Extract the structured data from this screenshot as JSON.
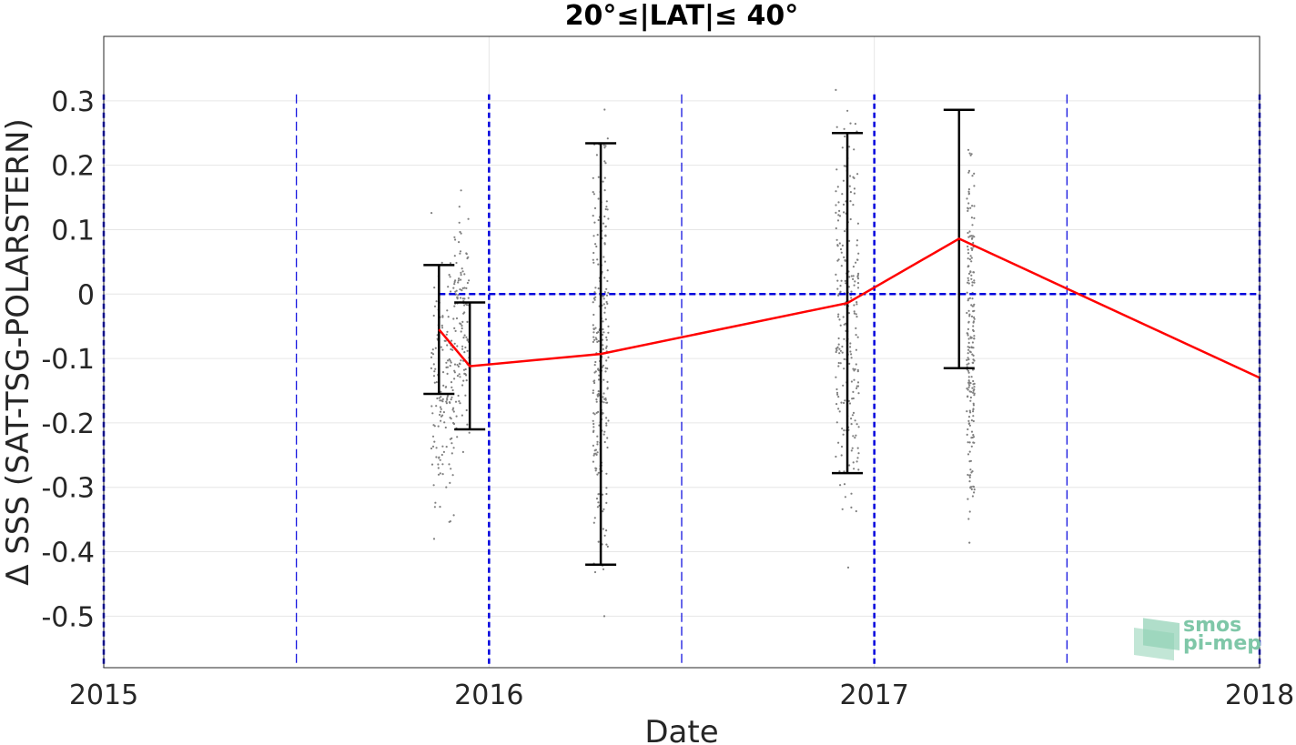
{
  "chart_data": {
    "type": "line",
    "title": "20°≤|LAT|≤ 40°",
    "xlabel": "Date",
    "ylabel": "Δ SSS (SAT-TSG-POLARSTERN)",
    "xlim": [
      2015,
      2018
    ],
    "ylim": [
      -0.58,
      0.4
    ],
    "x_ticks": [
      "2015",
      "2016",
      "2017",
      "2018"
    ],
    "y_ticks": [
      "0.3",
      "0.2",
      "0.1",
      "0",
      "-0.1",
      "-0.2",
      "-0.3",
      "-0.4",
      "-0.5"
    ],
    "grid": true,
    "mean_series": {
      "color": "#ff0000",
      "x": [
        2015.87,
        2015.95,
        2016.29,
        2016.93,
        2017.22,
        2018.0
      ],
      "y": [
        -0.055,
        -0.112,
        -0.093,
        -0.014,
        0.086,
        -0.13
      ]
    },
    "error_bars": [
      {
        "x": 2015.87,
        "low": -0.155,
        "high": 0.045
      },
      {
        "x": 2015.95,
        "low": -0.21,
        "high": -0.013
      },
      {
        "x": 2016.29,
        "low": -0.42,
        "high": 0.234
      },
      {
        "x": 2016.93,
        "low": -0.278,
        "high": 0.25
      },
      {
        "x": 2017.22,
        "low": -0.115,
        "high": 0.286
      }
    ],
    "scatter_groups": [
      {
        "x_from": 2015.85,
        "x_to": 2015.91,
        "y_min": -0.45,
        "y_max": 0.15
      },
      {
        "x_from": 2015.91,
        "x_to": 2015.95,
        "y_min": -0.27,
        "y_max": 0.19
      },
      {
        "x_from": 2016.27,
        "x_to": 2016.31,
        "y_min": -0.575,
        "y_max": 0.39
      },
      {
        "x_from": 2016.9,
        "x_to": 2016.96,
        "y_min": -0.51,
        "y_max": 0.39
      },
      {
        "x_from": 2017.24,
        "x_to": 2017.26,
        "y_min": -0.46,
        "y_max": 0.35
      }
    ],
    "zero_line": {
      "y": 0,
      "x_from": 2015.87,
      "color": "#0000dd"
    },
    "vertical_lines": {
      "bold": [
        2015.0,
        2016.0,
        2017.0,
        2018.0
      ],
      "thin": [
        2015.5,
        2016.5,
        2017.5
      ],
      "color": "#0000dd"
    },
    "colors": {
      "error_bar": "#000000",
      "scatter": "#808080",
      "grid": "#e6e6e6"
    }
  },
  "logo": {
    "line1": "smos",
    "line2": "pi-mep"
  }
}
